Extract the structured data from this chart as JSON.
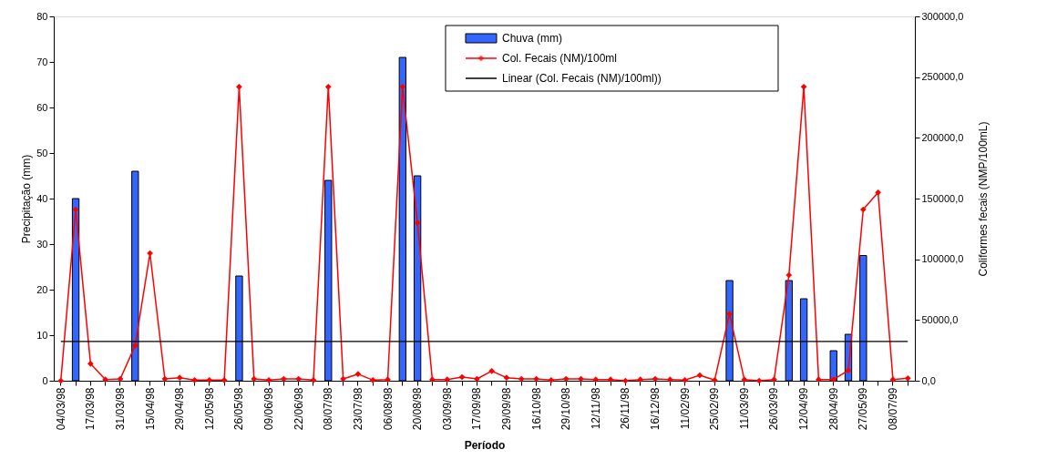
{
  "chart_data": {
    "type": "bar",
    "xlabel": "Período",
    "ylabel": "Precipitação (mm)",
    "y2label": "Coliformes fecais (NMP/100mL)",
    "categories": [
      "04/03/98",
      null,
      "17/03/98",
      null,
      "31/03/98",
      null,
      "15/04/98",
      null,
      "29/04/98",
      null,
      "12/05/98",
      null,
      "26/05/98",
      null,
      "09/06/98",
      null,
      "22/06/98",
      null,
      "08/07/98",
      null,
      "23/07/98",
      null,
      "06/08/98",
      null,
      "20/08/98",
      null,
      "03/09/98",
      null,
      "17/09/98",
      null,
      "29/09/98",
      null,
      "16/10/98",
      null,
      "29/10/98",
      null,
      "12/11/98",
      null,
      "26/11/98",
      null,
      "16/12/98",
      null,
      "11/02/99",
      null,
      "25/02/99",
      null,
      "11/03/99",
      null,
      "26/03/99",
      null,
      "12/04/99",
      null,
      "28/04/99",
      null,
      "27/05/99",
      null,
      "08/07/99",
      null
    ],
    "series": [
      {
        "name": "Chuva (mm)",
        "color": "#3366ff",
        "values": [
          null,
          40,
          null,
          null,
          null,
          46,
          null,
          null,
          null,
          null,
          null,
          null,
          23,
          null,
          null,
          null,
          null,
          null,
          44,
          null,
          null,
          null,
          null,
          71,
          45,
          null,
          null,
          null,
          null,
          null,
          null,
          null,
          null,
          null,
          null,
          null,
          null,
          null,
          null,
          null,
          null,
          null,
          null,
          null,
          null,
          22,
          null,
          null,
          null,
          22,
          18,
          null,
          6.6,
          10.2,
          27.5,
          null,
          null,
          null
        ]
      },
      {
        "name": "Col. Fecais (NM)/100ml",
        "type": "line",
        "axis": "y2",
        "color": "#ff0000",
        "marker": "diamond",
        "values": [
          0,
          141000,
          14000,
          1000,
          1500,
          29000,
          105000,
          1500,
          2500,
          500,
          500,
          500,
          242000,
          1500,
          500,
          1500,
          1500,
          500,
          242000,
          1500,
          5500,
          500,
          1000,
          242000,
          130000,
          1000,
          1000,
          3000,
          1500,
          8000,
          2500,
          1500,
          1500,
          500,
          1500,
          1500,
          1000,
          1000,
          0,
          1000,
          1500,
          1000,
          500,
          4500,
          500,
          55000,
          1000,
          0,
          1000,
          87000,
          242000,
          1000,
          1000,
          8500,
          141000,
          155000,
          1000,
          2000
        ]
      },
      {
        "name": "Linear (Col. Fecais (NM)/100ml))",
        "type": "line",
        "axis": "y2",
        "color": "#000000",
        "marker": "none",
        "values": [
          32300,
          32300,
          32300,
          32300,
          32300,
          32300,
          32300,
          32300,
          32300,
          32300,
          32300,
          32300,
          32300,
          32300,
          32300,
          32300,
          32300,
          32300,
          32300,
          32300,
          32300,
          32300,
          32300,
          32300,
          32300,
          32300,
          32300,
          32300,
          32300,
          32300,
          32300,
          32300,
          32300,
          32300,
          32300,
          32300,
          32300,
          32300,
          32300,
          32300,
          32300,
          32300,
          32300,
          32300,
          32300,
          32300,
          32300,
          32300,
          32300,
          32300,
          32300,
          32300,
          32300,
          32300,
          32300,
          32300,
          32300,
          32300
        ]
      }
    ],
    "ylim": [
      0,
      80
    ],
    "yticks": [
      0,
      10,
      20,
      30,
      40,
      50,
      60,
      70,
      80
    ],
    "y2lim": [
      0,
      300000
    ],
    "y2ticks": [
      {
        "value": 0,
        "label": "0,0"
      },
      {
        "value": 50000,
        "label": "50000,0"
      },
      {
        "value": 100000,
        "label": "100000,0"
      },
      {
        "value": 150000,
        "label": "150000,0"
      },
      {
        "value": 200000,
        "label": "200000,0"
      },
      {
        "value": 250000,
        "label": "250000,0"
      },
      {
        "value": 300000,
        "label": "300000,0"
      }
    ],
    "legend": "top right",
    "grid": false
  }
}
